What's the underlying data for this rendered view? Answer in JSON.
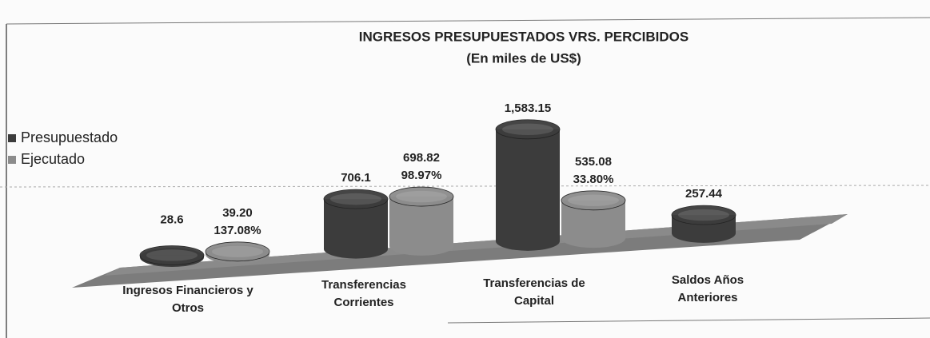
{
  "chart_data": {
    "type": "cylinder-bar",
    "title": "INGRESOS PRESUPUESTADOS VRS. PERCIBIDOS",
    "subtitle": "(En miles de US$)",
    "categories": [
      "Ingresos Financieros y Otros",
      "Transferencias Corrientes",
      "Transferencias de Capital",
      "Saldos Años Anteriores"
    ],
    "series": [
      {
        "name": "Presupuestado",
        "color": "#3c3c3c",
        "values": [
          28.6,
          706.1,
          1583.15,
          257.44
        ],
        "value_labels": [
          "28.6",
          "706.1",
          "1,583.15",
          "257.44"
        ]
      },
      {
        "name": "Ejecutado",
        "color": "#8c8c8c",
        "values": [
          39.2,
          698.82,
          535.08,
          null
        ],
        "value_labels": [
          "39.20",
          "698.82",
          "535.08",
          null
        ],
        "percent_labels": [
          "137.08%",
          "98.97%",
          "33.80%",
          null
        ]
      }
    ],
    "legend": "left"
  }
}
